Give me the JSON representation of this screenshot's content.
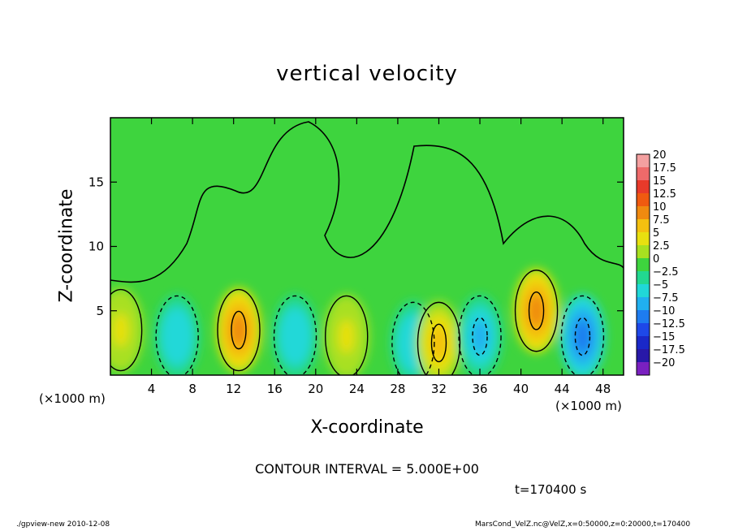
{
  "chart_data": {
    "type": "heatmap",
    "title": "vertical velocity",
    "xlabel": "X-coordinate",
    "ylabel": "Z-coordinate",
    "x_unit_left": "(×1000 m)",
    "x_unit_right": "(×1000 m)",
    "xlim": [
      0,
      50
    ],
    "ylim": [
      0,
      20
    ],
    "x_ticks": [
      "4",
      "8",
      "12",
      "16",
      "20",
      "24",
      "28",
      "32",
      "36",
      "40",
      "44",
      "48"
    ],
    "x_tick_values": [
      4,
      8,
      12,
      16,
      20,
      24,
      28,
      32,
      36,
      40,
      44,
      48
    ],
    "y_ticks": [
      "5",
      "10",
      "15"
    ],
    "y_tick_values": [
      5,
      10,
      15
    ],
    "colorbar": {
      "labels": [
        "20",
        "17.5",
        "15",
        "12.5",
        "10",
        "7.5",
        "5",
        "2.5",
        "0",
        "−2.5",
        "−5",
        "−7.5",
        "−10",
        "−12.5",
        "−15",
        "−17.5",
        "−20"
      ],
      "colors": [
        "#f4a0a0",
        "#ef6a6a",
        "#e83a2a",
        "#f05a10",
        "#f08a10",
        "#f4c010",
        "#e8e010",
        "#a8e020",
        "#3ed43e",
        "#22d890",
        "#20d8d8",
        "#20b0f0",
        "#1e7cf0",
        "#1e48e8",
        "#1a28c8",
        "#2818a8",
        "#7a20c0"
      ]
    },
    "cells": [
      {
        "x": 1,
        "z": 3.5,
        "w": 4.0
      },
      {
        "x": 6.5,
        "z": 3.0,
        "w": -5.0
      },
      {
        "x": 12.5,
        "z": 3.5,
        "w": 11.0
      },
      {
        "x": 18,
        "z": 3.0,
        "w": -5.5
      },
      {
        "x": 23,
        "z": 3.0,
        "w": 4.5
      },
      {
        "x": 29.5,
        "z": 2.5,
        "w": -6.0
      },
      {
        "x": 32,
        "z": 2.5,
        "w": 7.0
      },
      {
        "x": 36,
        "z": 3.0,
        "w": -8.0
      },
      {
        "x": 41.5,
        "z": 5.0,
        "w": 11.0
      },
      {
        "x": 46,
        "z": 3.0,
        "w": -11.0
      }
    ],
    "grid": false,
    "legend": "right"
  },
  "contour_interval": "CONTOUR INTERVAL = 5.000E+00",
  "time": "t=170400 s",
  "footer_left": "./gpview-new   2010-12-08",
  "footer_right": "MarsCond_VelZ.nc@VelZ,x=0:50000,z=0:20000,t=170400"
}
